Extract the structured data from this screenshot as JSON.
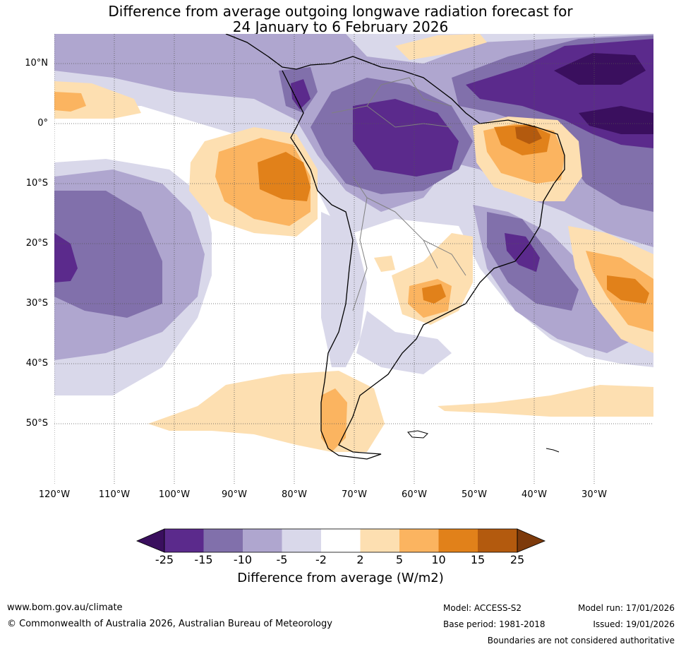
{
  "title": {
    "line1": "Difference from average outgoing longwave radiation forecast for",
    "line2": "24 January to 6 February 2026"
  },
  "map": {
    "lat_labels": [
      "10°N",
      "0°",
      "10°S",
      "20°S",
      "30°S",
      "40°S",
      "50°S"
    ],
    "lon_labels": [
      "120°W",
      "110°W",
      "100°W",
      "90°W",
      "80°W",
      "70°W",
      "60°W",
      "50°W",
      "40°W",
      "30°W"
    ]
  },
  "colorbar": {
    "ticks": [
      "-25",
      "-15",
      "-10",
      "-5",
      "-2",
      "2",
      "5",
      "10",
      "15",
      "25"
    ],
    "colors": [
      "#3a0f5e",
      "#5b2a8c",
      "#8170ab",
      "#afa6cf",
      "#d9d8ea",
      "#ffffff",
      "#fddfb1",
      "#fbb460",
      "#e1811a",
      "#b35a0e",
      "#7d3a0b"
    ],
    "title": "Difference from average (W/m2)"
  },
  "footer": {
    "website": "www.bom.gov.au/climate",
    "copyright": "© Commonwealth of Australia 2026, Australian Bureau of Meteorology",
    "model": "Model: ACCESS-S2",
    "base_period": "Base period: 1981-2018",
    "model_run": "Model run: 17/01/2026",
    "issued": "Issued: 19/01/2026",
    "disclaimer": "Boundaries are not considered authoritative"
  }
}
